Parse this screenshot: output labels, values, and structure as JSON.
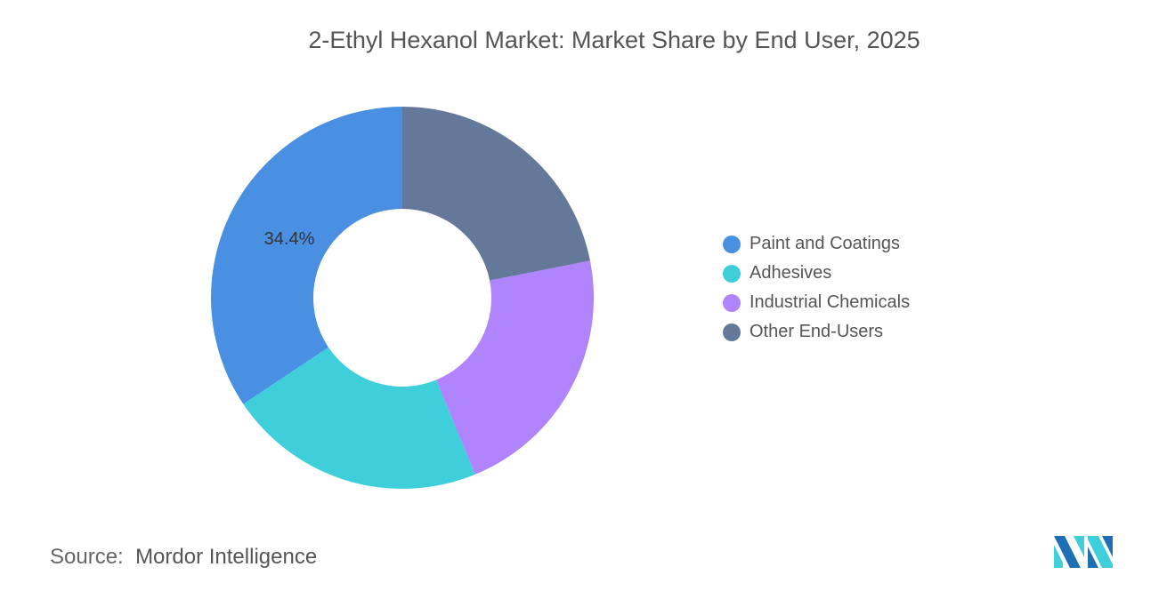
{
  "chart_data": {
    "type": "pie",
    "donut": true,
    "title": "2-Ethyl Hexanol Market: Market Share by End User, 2025",
    "categories": [
      "Paint and Coatings",
      "Adhesives",
      "Industrial Chemicals",
      "Other End-Users"
    ],
    "values": [
      34.4,
      21.8,
      21.9,
      21.9
    ],
    "colors": [
      "#4a90e2",
      "#3ecfdb",
      "#b084fc",
      "#647899"
    ],
    "data_labels": [
      {
        "category": "Paint and Coatings",
        "text": "34.4%"
      }
    ],
    "legend_position": "right",
    "unit": "%"
  },
  "source": {
    "label": "Source:",
    "text": "Mordor Intelligence"
  },
  "logo": {
    "name": "mordor-intelligence-logo",
    "text": "MI"
  }
}
